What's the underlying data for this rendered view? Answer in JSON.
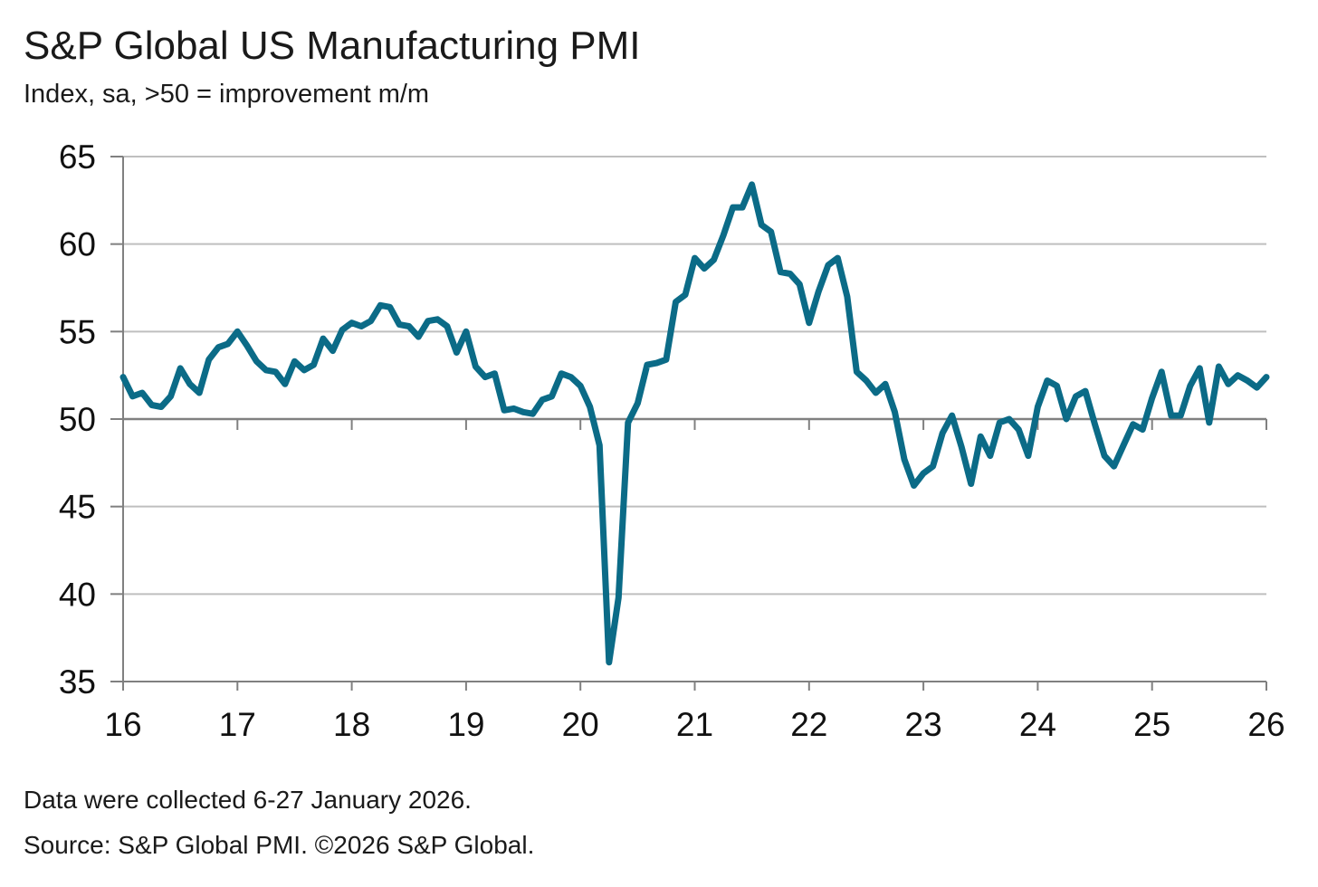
{
  "header": {
    "title": "S&P Global US Manufacturing PMI",
    "subtitle": "Index, sa, >50 = improvement m/m"
  },
  "footer": {
    "collected": "Data were collected 6-27 January 2026.",
    "source": "Source: S&P Global PMI. ©2026 S&P Global."
  },
  "colors": {
    "series": "#0b6b87",
    "grid": "#bfbfbf",
    "axis": "#808080"
  },
  "chart_data": {
    "type": "line",
    "title": "S&P Global US Manufacturing PMI",
    "subtitle": "Index, sa, >50 = improvement m/m",
    "xlabel": "",
    "ylabel": "",
    "ylim": [
      35,
      65
    ],
    "yticks": [
      65,
      60,
      55,
      50,
      45,
      40,
      35
    ],
    "xlim": [
      16,
      26
    ],
    "xticks": [
      "16",
      "17",
      "18",
      "19",
      "20",
      "21",
      "22",
      "23",
      "24",
      "25",
      "26"
    ],
    "grid": true,
    "legend": "none",
    "series": [
      {
        "name": "",
        "x_start": "2016-01",
        "frequency": "monthly",
        "values": [
          52.4,
          51.3,
          51.5,
          50.8,
          50.7,
          51.3,
          52.9,
          52.0,
          51.5,
          53.4,
          54.1,
          54.3,
          55.0,
          54.2,
          53.3,
          52.8,
          52.7,
          52.0,
          53.3,
          52.8,
          53.1,
          54.6,
          53.9,
          55.1,
          55.5,
          55.3,
          55.6,
          56.5,
          56.4,
          55.4,
          55.3,
          54.7,
          55.6,
          55.7,
          55.3,
          53.8,
          55.0,
          53.0,
          52.4,
          52.6,
          50.5,
          50.6,
          50.4,
          50.3,
          51.1,
          51.3,
          52.6,
          52.4,
          51.9,
          50.7,
          48.5,
          36.1,
          39.8,
          49.8,
          50.9,
          53.1,
          53.2,
          53.4,
          56.7,
          57.1,
          59.2,
          58.6,
          59.1,
          60.5,
          62.1,
          62.1,
          63.4,
          61.1,
          60.7,
          58.4,
          58.3,
          57.7,
          55.5,
          57.3,
          58.8,
          59.2,
          57.0,
          52.7,
          52.2,
          51.5,
          52.0,
          50.4,
          47.7,
          46.2,
          46.9,
          47.3,
          49.2,
          50.2,
          48.4,
          46.3,
          49.0,
          47.9,
          49.8,
          50.0,
          49.4,
          47.9,
          50.7,
          52.2,
          51.9,
          50.0,
          51.3,
          51.6,
          49.7,
          47.9,
          47.3,
          48.5,
          49.7,
          49.4,
          51.2,
          52.7,
          50.2,
          50.2,
          51.9,
          52.9,
          49.8,
          53.0,
          52.0,
          52.5,
          52.2,
          51.8,
          52.4
        ]
      }
    ]
  }
}
